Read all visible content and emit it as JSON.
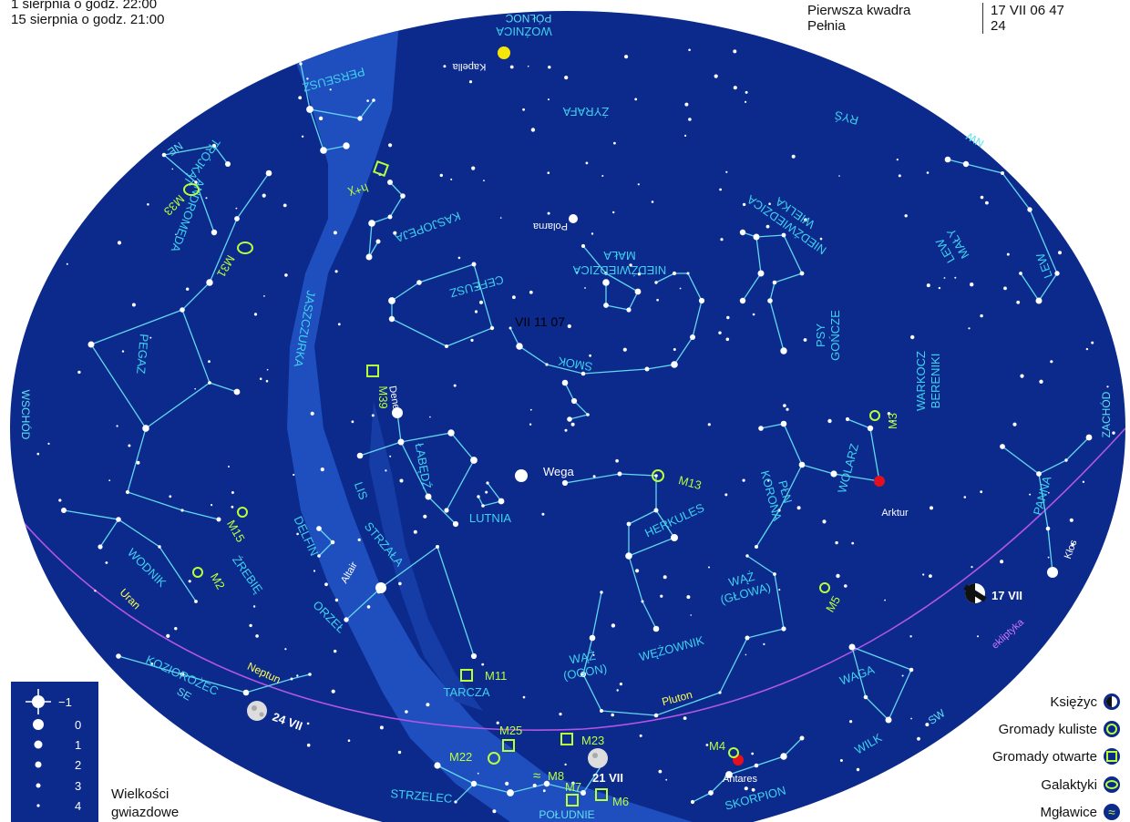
{
  "header": {
    "dates": [
      "1 sierpnia o godz. 22:00",
      "15 sierpnia o godz. 21:00"
    ],
    "phases": [
      {
        "name": "Pierwsza kwadra",
        "value": "17  VII 06 47"
      },
      {
        "name": "Pełnia",
        "value": "24"
      }
    ]
  },
  "directions": [
    "PÓŁNOC",
    "NE",
    "NW",
    "WSCHÓD",
    "ZACHÓD",
    "SE",
    "SW",
    "POŁUDNIE"
  ],
  "constellations": [
    "WOŹNICA",
    "PERSEUSZ",
    "ŻYRAFA",
    "RYŚ",
    "TRÓJKĄT",
    "ANDROMEDA",
    "KASJOPEJA",
    "MAŁA NIEDŹWIEDZICA",
    "WIELKA NIEDŹWIEDZICA",
    "MAŁY LEW",
    "LEW",
    "CEFEUSZ",
    "JASZCZURKA",
    "PEGAZ",
    "SMOK",
    "PSY GOŃCZE",
    "WARKOCZ BERENIKI",
    "ŁABĘDŹ",
    "LIS",
    "LUTNIA",
    "HERKULES",
    "KORONA PŁN",
    "WOLARZ",
    "PANNA",
    "DELFIN",
    "ŹREBIĘ",
    "STRZAŁA",
    "WODNIK",
    "ORZEŁ",
    "WĄŻ (GŁOWA)",
    "WĄŻ (OGON)",
    "WĘŻOWNIK",
    "KOZIOROŻEC",
    "TARCZA",
    "WAGA",
    "STRZELEC",
    "SKORPION",
    "WILK"
  ],
  "stars": [
    "Kapella",
    "Polarna",
    "Deneb",
    "Wega",
    "Altair",
    "Arktur",
    "Kłos",
    "Antares"
  ],
  "objects": [
    "h+χ",
    "M33",
    "M31",
    "M39",
    "M3",
    "M13",
    "M15",
    "M2",
    "M5",
    "M11",
    "M25",
    "M23",
    "M22",
    "M8",
    "M7",
    "M6",
    "M4"
  ],
  "planets": [
    "Uran",
    "Neptun",
    "Pluton"
  ],
  "ecliptic_label": "ekliptyka",
  "pole_label": "VII 11 07",
  "moon_positions": [
    "17 VII",
    "24 VII",
    "21 VII"
  ],
  "legend_magnitudes": {
    "values": [
      "−1",
      "0",
      "1",
      "2",
      "3",
      "4"
    ],
    "title": [
      "Wielkości",
      "gwiazdowe"
    ]
  },
  "legend_objects": [
    "Księżyc",
    "Gromady kuliste",
    "Gromady otwarte",
    "Galaktyki",
    "Mgławice"
  ],
  "colors": {
    "sky": "#0b2a8c",
    "milky_way": "#1f4fbe",
    "lines": "#63d8ef",
    "labels": "#3fd2ee",
    "objects": "#b8ff3a",
    "ecliptic": "#b455e6",
    "planet_labels": "#ffff55",
    "red_star": "#e3101f",
    "yellow_star": "#f5e60a"
  }
}
